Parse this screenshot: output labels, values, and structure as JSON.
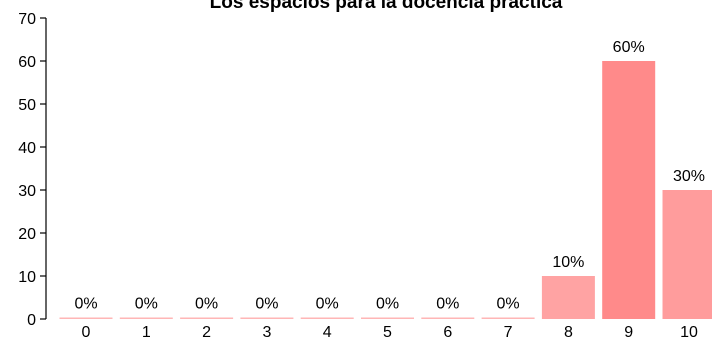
{
  "chart_data": {
    "type": "bar",
    "title": "Los espacios para la docencia práctica",
    "xlabel": "",
    "ylabel": "",
    "categories": [
      "0",
      "1",
      "2",
      "3",
      "4",
      "5",
      "6",
      "7",
      "8",
      "9",
      "10"
    ],
    "values": [
      0,
      0,
      0,
      0,
      0,
      0,
      0,
      0,
      10,
      60,
      30
    ],
    "data_labels": [
      "0%",
      "0%",
      "0%",
      "0%",
      "0%",
      "0%",
      "0%",
      "0%",
      "10%",
      "60%",
      "30%"
    ],
    "ylim": [
      0,
      70
    ],
    "yticks": [
      "0",
      "10",
      "20",
      "30",
      "40",
      "50",
      "60",
      "70"
    ],
    "grid": false,
    "bar_colors": [
      "#ffb6b6",
      "#ffb6b6",
      "#ffb6b6",
      "#ffb6b6",
      "#ffb6b6",
      "#ffb6b6",
      "#ffb6b6",
      "#ffb6b6",
      "#ffa3a3",
      "#ff8a8a",
      "#ff9c9c"
    ]
  }
}
